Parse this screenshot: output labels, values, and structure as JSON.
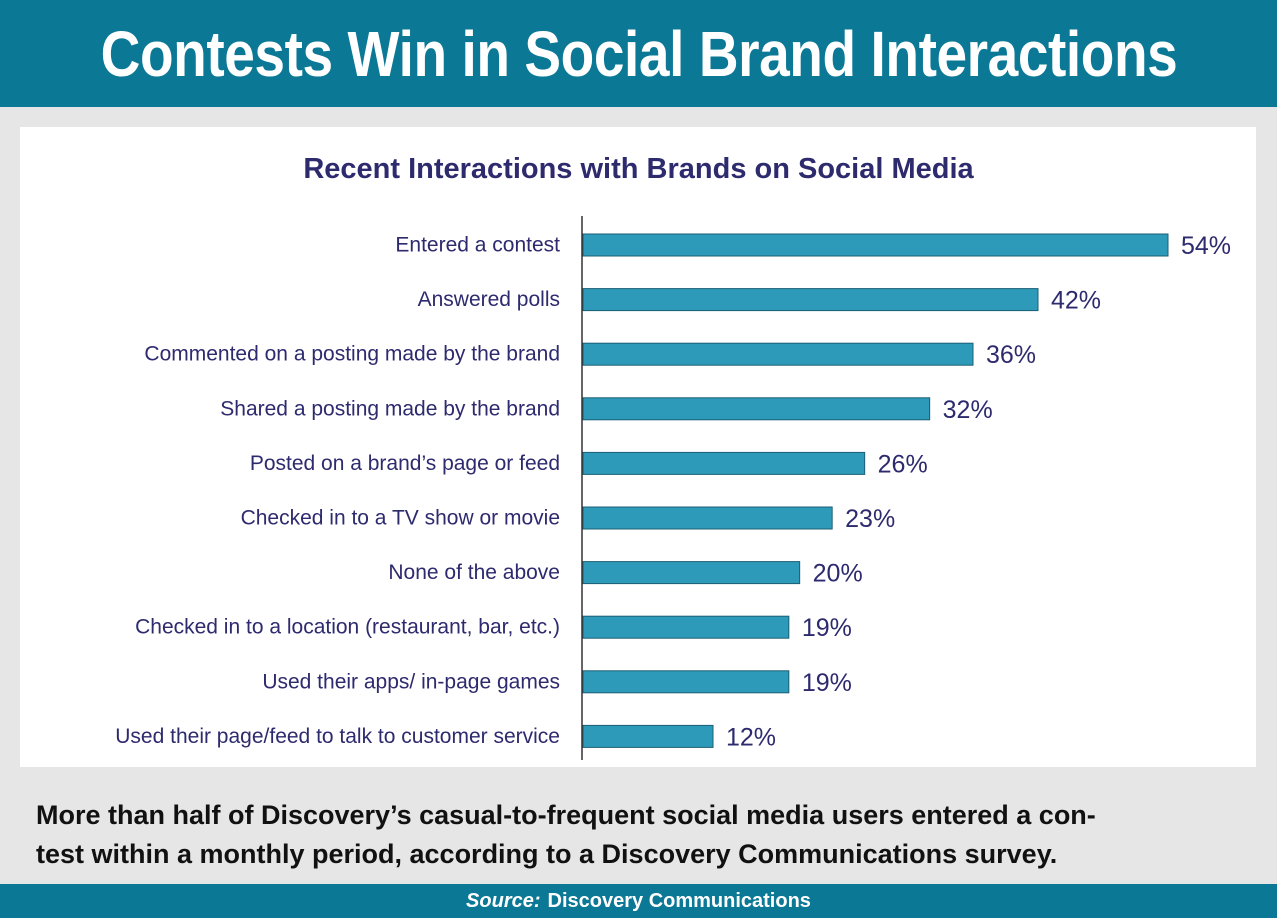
{
  "headline": "Contests Win in Social Brand Interactions",
  "caption_lines": [
    "More than half of Discovery’s casual-to-frequent social media users entered a con-",
    "test within a monthly period, according to a Discovery Communications survey."
  ],
  "source": {
    "label": "Source:",
    "text": "Discovery Communications"
  },
  "colors": {
    "banner": "#0b7896",
    "bar": "#2e9ab9",
    "text": "#2d2a6e"
  },
  "chart_data": {
    "type": "bar",
    "orientation": "horizontal",
    "title": "Recent Interactions with Brands on Social Media",
    "categories": [
      "Entered a contest",
      "Answered polls",
      "Commented on a posting made by the brand",
      "Shared a posting made by the brand",
      "Posted on a brand’s page or feed",
      "Checked in to a TV show or movie",
      "None of the above",
      "Checked in to a location (restaurant, bar, etc.)",
      "Used their apps/ in-page games",
      "Used their page/feed to talk to customer service"
    ],
    "values": [
      54,
      42,
      36,
      32,
      26,
      23,
      20,
      19,
      19,
      12
    ],
    "value_labels": [
      "54%",
      "42%",
      "36%",
      "32%",
      "26%",
      "23%",
      "20%",
      "19%",
      "19%",
      "12%"
    ],
    "unit": "%",
    "xlim": [
      0,
      54
    ],
    "grid": false,
    "legend": "none"
  }
}
